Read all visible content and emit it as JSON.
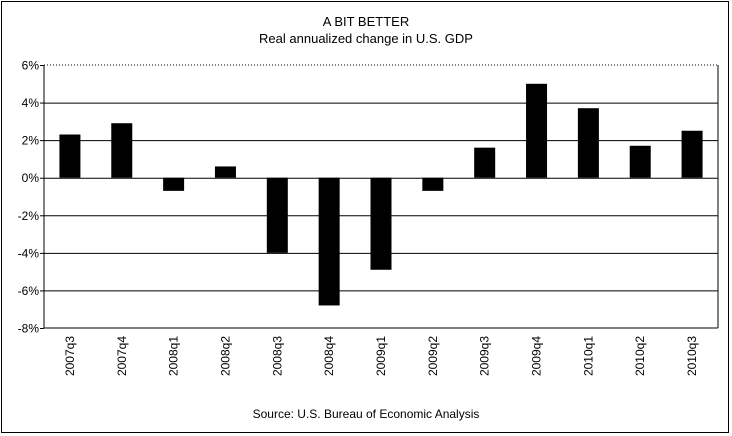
{
  "chart_data": {
    "type": "bar",
    "title": "A BIT BETTER",
    "subtitle": "Real annualized change in U.S. GDP",
    "source": "Source: U.S. Bureau of Economic Analysis",
    "categories": [
      "2007q3",
      "2007q4",
      "2008q1",
      "2008q2",
      "2008q3",
      "2008q4",
      "2009q1",
      "2009q2",
      "2009q3",
      "2009q4",
      "2010q1",
      "2010q2",
      "2010q3"
    ],
    "values": [
      2.3,
      2.9,
      -0.7,
      0.6,
      -4.0,
      -6.8,
      -4.9,
      -0.7,
      1.6,
      5.0,
      3.7,
      1.7,
      2.5
    ],
    "yticks": [
      "-8%",
      "-6%",
      "-4%",
      "-2%",
      "0%",
      "2%",
      "4%",
      "6%"
    ],
    "ylim": [
      -8,
      6
    ],
    "grid": true,
    "bar_color": "#000000"
  }
}
